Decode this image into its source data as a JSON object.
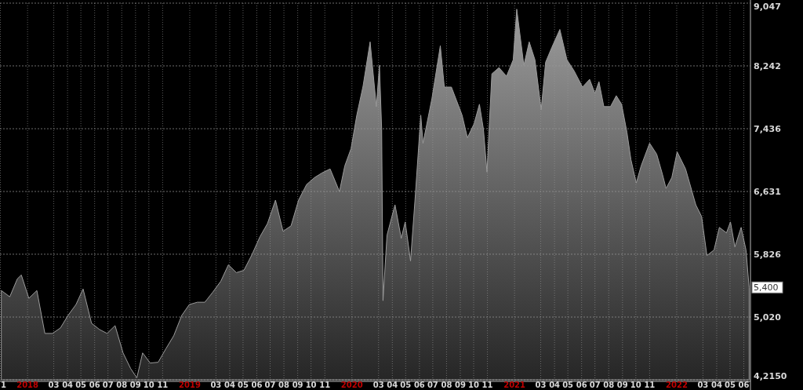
{
  "chart_data": {
    "type": "area",
    "x": [
      "2017-11-03",
      "2017-11-22",
      "2017-12-09",
      "2017-12-18",
      "2018-01-04",
      "2018-01-22",
      "2018-02-09",
      "2018-02-26",
      "2018-03-16",
      "2018-04-02",
      "2018-04-20",
      "2018-05-06",
      "2018-05-25",
      "2018-06-12",
      "2018-06-29",
      "2018-07-17",
      "2018-08-04",
      "2018-08-21",
      "2018-09-04",
      "2018-09-17",
      "2018-10-04",
      "2018-10-22",
      "2018-11-08",
      "2018-11-26",
      "2018-12-14",
      "2018-12-31",
      "2019-01-18",
      "2019-02-04",
      "2019-02-22",
      "2019-03-12",
      "2019-03-29",
      "2019-04-16",
      "2019-05-03",
      "2019-05-21",
      "2019-06-08",
      "2019-06-25",
      "2019-07-13",
      "2019-07-30",
      "2019-08-17",
      "2019-09-03",
      "2019-09-21",
      "2019-10-09",
      "2019-10-26",
      "2019-11-13",
      "2019-12-04",
      "2019-12-16",
      "2019-12-30",
      "2020-01-12",
      "2020-01-26",
      "2020-02-11",
      "2020-02-25",
      "2020-03-03",
      "2020-03-08",
      "2020-03-11",
      "2020-03-20",
      "2020-04-07",
      "2020-04-21",
      "2020-04-30",
      "2020-05-12",
      "2020-05-23",
      "2020-06-04",
      "2020-06-09",
      "2020-06-29",
      "2020-07-18",
      "2020-07-27",
      "2020-08-12",
      "2020-08-24",
      "2020-09-05",
      "2020-09-17",
      "2020-10-02",
      "2020-10-14",
      "2020-10-23",
      "2020-10-31",
      "2020-11-11",
      "2020-11-27",
      "2020-12-14",
      "2020-12-29",
      "2021-01-06",
      "2021-01-22",
      "2021-02-03",
      "2021-02-16",
      "2021-03-02",
      "2021-03-12",
      "2021-03-26",
      "2021-04-13",
      "2021-04-29",
      "2021-05-15",
      "2021-06-03",
      "2021-06-19",
      "2021-07-01",
      "2021-07-10",
      "2021-07-21",
      "2021-08-05",
      "2021-08-18",
      "2021-08-30",
      "2021-09-11",
      "2021-09-20",
      "2021-10-02",
      "2021-10-13",
      "2021-11-01",
      "2021-11-17",
      "2021-11-30",
      "2021-12-08",
      "2021-12-21",
      "2022-01-02",
      "2022-01-21",
      "2022-01-30",
      "2022-02-13",
      "2022-02-26",
      "2022-03-10",
      "2022-03-26",
      "2022-04-07",
      "2022-04-23",
      "2022-05-02",
      "2022-05-12",
      "2022-05-26",
      "2022-06-06",
      "2022-06-13"
    ],
    "series": [
      {
        "color": "#9c9c9c",
        "values": [
          5360,
          5280,
          5510,
          5560,
          5260,
          5360,
          4810,
          4810,
          4880,
          5040,
          5180,
          5380,
          4940,
          4860,
          4810,
          4910,
          4560,
          4360,
          4240,
          4560,
          4430,
          4440,
          4610,
          4780,
          5040,
          5180,
          5210,
          5210,
          5340,
          5480,
          5690,
          5590,
          5620,
          5820,
          6050,
          6220,
          6520,
          6120,
          6190,
          6520,
          6720,
          6810,
          6870,
          6920,
          6630,
          6960,
          7180,
          7610,
          7980,
          8550,
          7720,
          8250,
          7430,
          5230,
          6070,
          6460,
          6030,
          6240,
          5740,
          6600,
          7610,
          7250,
          7820,
          8500,
          7970,
          7970,
          7790,
          7610,
          7320,
          7500,
          7750,
          7430,
          6880,
          8140,
          8220,
          8110,
          8320,
          8970,
          8250,
          8550,
          8320,
          7680,
          8290,
          8480,
          8710,
          8320,
          8180,
          7970,
          8070,
          7890,
          8040,
          7720,
          7720,
          7860,
          7750,
          7390,
          7040,
          6740,
          6960,
          7250,
          7110,
          6850,
          6670,
          6810,
          7140,
          6920,
          6740,
          6460,
          6310,
          5810,
          5880,
          6170,
          6100,
          6240,
          5920,
          6170,
          5880,
          5400
        ]
      }
    ],
    "xlim": [
      "2017-10-31",
      "2022-06-16"
    ],
    "xticks": [
      {
        "value": "2017-11-01",
        "label": "1"
      },
      {
        "value": "2018-01-01",
        "label": "2018"
      },
      {
        "value": "2018-03-01",
        "label": "03"
      },
      {
        "value": "2018-04-01",
        "label": "04"
      },
      {
        "value": "2018-05-01",
        "label": "05"
      },
      {
        "value": "2018-06-01",
        "label": "06"
      },
      {
        "value": "2018-07-01",
        "label": "07"
      },
      {
        "value": "2018-08-01",
        "label": "08"
      },
      {
        "value": "2018-09-01",
        "label": "09"
      },
      {
        "value": "2018-10-01",
        "label": "10"
      },
      {
        "value": "2018-11-01",
        "label": "11"
      },
      {
        "value": "2019-01-01",
        "label": "2019"
      },
      {
        "value": "2019-03-01",
        "label": "03"
      },
      {
        "value": "2019-04-01",
        "label": "04"
      },
      {
        "value": "2019-05-01",
        "label": "05"
      },
      {
        "value": "2019-06-01",
        "label": "06"
      },
      {
        "value": "2019-07-01",
        "label": "07"
      },
      {
        "value": "2019-08-01",
        "label": "08"
      },
      {
        "value": "2019-09-01",
        "label": "09"
      },
      {
        "value": "2019-10-01",
        "label": "10"
      },
      {
        "value": "2019-11-01",
        "label": "11"
      },
      {
        "value": "2020-01-01",
        "label": "2020"
      },
      {
        "value": "2020-03-01",
        "label": "03"
      },
      {
        "value": "2020-04-01",
        "label": "04"
      },
      {
        "value": "2020-05-01",
        "label": "05"
      },
      {
        "value": "2020-06-01",
        "label": "06"
      },
      {
        "value": "2020-07-01",
        "label": "07"
      },
      {
        "value": "2020-08-01",
        "label": "08"
      },
      {
        "value": "2020-09-01",
        "label": "09"
      },
      {
        "value": "2020-10-01",
        "label": "10"
      },
      {
        "value": "2020-11-01",
        "label": "11"
      },
      {
        "value": "2021-01-01",
        "label": "2021"
      },
      {
        "value": "2021-03-01",
        "label": "03"
      },
      {
        "value": "2021-04-01",
        "label": "04"
      },
      {
        "value": "2021-05-01",
        "label": "05"
      },
      {
        "value": "2021-06-01",
        "label": "06"
      },
      {
        "value": "2021-07-01",
        "label": "07"
      },
      {
        "value": "2021-08-01",
        "label": "08"
      },
      {
        "value": "2021-09-01",
        "label": "09"
      },
      {
        "value": "2021-10-01",
        "label": "10"
      },
      {
        "value": "2021-11-01",
        "label": "11"
      },
      {
        "value": "2022-01-01",
        "label": "2022"
      },
      {
        "value": "2022-03-01",
        "label": "03"
      },
      {
        "value": "2022-04-01",
        "label": "04"
      },
      {
        "value": "2022-05-01",
        "label": "05"
      },
      {
        "value": "2022-06-01",
        "label": "06"
      }
    ],
    "ylim": [
      4215,
      9047
    ],
    "yticks": [
      {
        "value": 4215,
        "label": "4,2150"
      },
      {
        "value": 5020,
        "label": "5,020"
      },
      {
        "value": 5826,
        "label": "5,826"
      },
      {
        "value": 6631,
        "label": "6,631"
      },
      {
        "value": 7436,
        "label": "7,436"
      },
      {
        "value": 8242,
        "label": "8,242"
      },
      {
        "value": 9047,
        "label": "9,047"
      }
    ],
    "annotations": [
      {
        "text": "5,400",
        "x": "2022-06-13",
        "y": 5400
      }
    ],
    "grid": true
  }
}
